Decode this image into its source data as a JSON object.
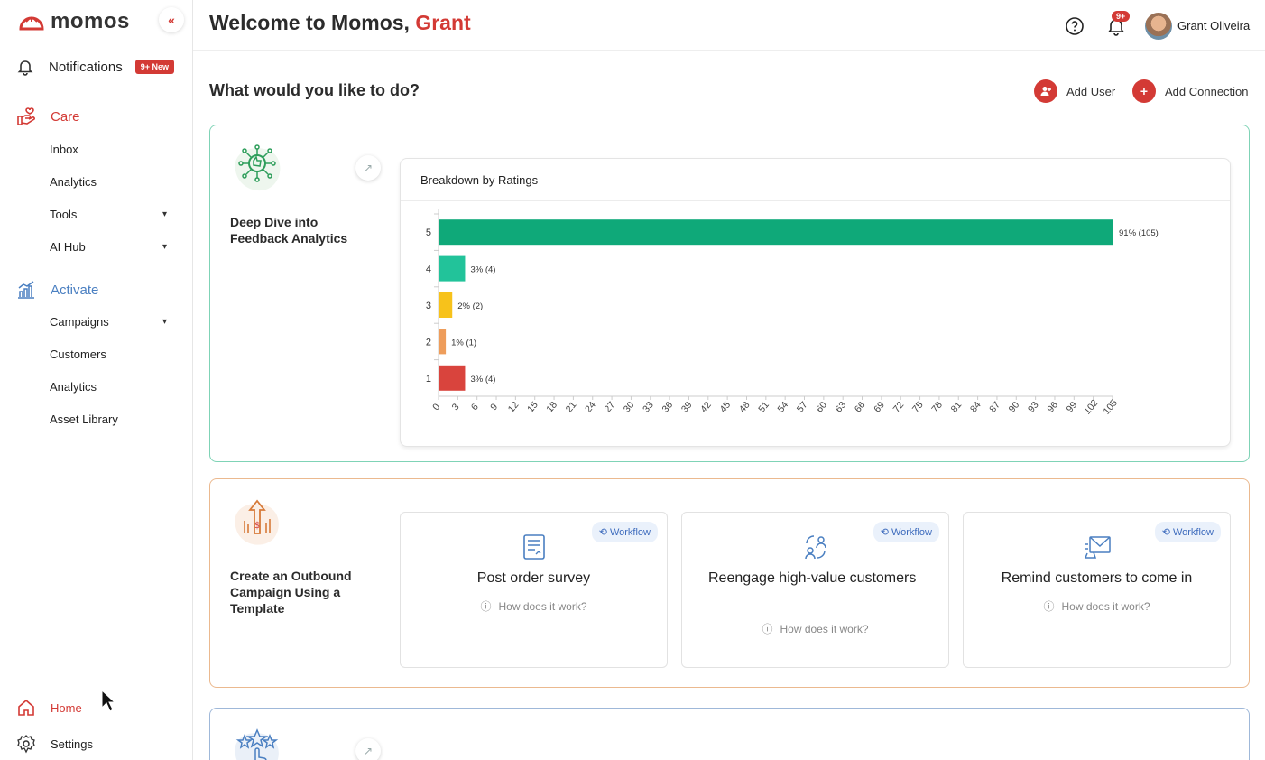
{
  "sidebar": {
    "logo": "momos",
    "collapse_icon": "«",
    "notifications": {
      "label": "Notifications",
      "badge": "9+ New"
    },
    "care": {
      "label": "Care",
      "items": [
        {
          "label": "Inbox",
          "chevron": ""
        },
        {
          "label": "Analytics",
          "chevron": ""
        },
        {
          "label": "Tools",
          "chevron": "⌄"
        },
        {
          "label": "AI Hub",
          "chevron": "⌄"
        }
      ]
    },
    "activate": {
      "label": "Activate",
      "items": [
        {
          "label": "Campaigns",
          "chevron": "⌄"
        },
        {
          "label": "Customers",
          "chevron": ""
        },
        {
          "label": "Analytics",
          "chevron": ""
        },
        {
          "label": "Asset Library",
          "chevron": ""
        }
      ]
    },
    "home": "Home",
    "settings": "Settings",
    "accent_color": "#d33a35",
    "activate_color": "#4a7fc1"
  },
  "header": {
    "welcome_prefix": "Welcome to Momos,",
    "welcome_name": "Grant",
    "bell_badge": "9+",
    "user_name": "Grant Oliveira"
  },
  "main": {
    "question": "What would you like to do?",
    "add_user": "Add User",
    "add_connection": "Add Connection",
    "card1": {
      "title": "Deep Dive into Feedback Analytics",
      "chart_title": "Breakdown by Ratings"
    },
    "card2": {
      "title": "Create an Outbound Campaign Using a Template",
      "workflows": [
        {
          "tag": "Workflow",
          "title": "Post order survey",
          "how": "How does it work?"
        },
        {
          "tag": "Workflow",
          "title": "Reengage high-value customers",
          "how": "How does it work?"
        },
        {
          "tag": "Workflow",
          "title": "Remind customers to come in",
          "how": "How does it work?"
        }
      ]
    }
  },
  "chart_data": {
    "type": "bar",
    "orientation": "horizontal",
    "title": "Breakdown by Ratings",
    "categories": [
      "5",
      "4",
      "3",
      "2",
      "1"
    ],
    "values": [
      105,
      4,
      2,
      1,
      4
    ],
    "labels": [
      "91% (105)",
      "3% (4)",
      "2% (2)",
      "1% (1)",
      "3% (4)"
    ],
    "colors": [
      "#0fa979",
      "#22c39a",
      "#f7c21b",
      "#ee9d5b",
      "#d9443d"
    ],
    "xlim": [
      0,
      105
    ],
    "xticks": [
      "0",
      "3",
      "6",
      "9",
      "12",
      "15",
      "18",
      "21",
      "24",
      "27",
      "30",
      "33",
      "36",
      "39",
      "42",
      "45",
      "48",
      "51",
      "54",
      "57",
      "60",
      "63",
      "66",
      "69",
      "72",
      "75",
      "78",
      "81",
      "84",
      "87",
      "90",
      "93",
      "96",
      "99",
      "102",
      "105"
    ]
  }
}
